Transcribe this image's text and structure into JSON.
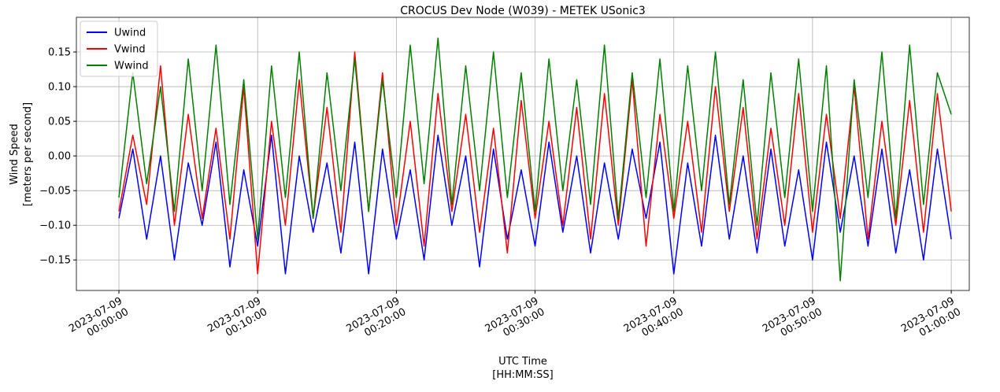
{
  "chart_data": {
    "type": "line",
    "title": "CROCUS Dev Node (W039) - METEK USonic3",
    "xlabel": [
      "UTC Time",
      "[HH:MM:SS]"
    ],
    "ylabel": [
      "Wind Speed",
      "[meters per second]"
    ],
    "x": [
      "2023-07-09 00:00:00",
      "2023-07-09 00:01:00",
      "2023-07-09 00:02:00",
      "2023-07-09 00:03:00",
      "2023-07-09 00:04:00",
      "2023-07-09 00:05:00",
      "2023-07-09 00:06:00",
      "2023-07-09 00:07:00",
      "2023-07-09 00:08:00",
      "2023-07-09 00:09:00",
      "2023-07-09 00:10:00",
      "2023-07-09 00:11:00",
      "2023-07-09 00:12:00",
      "2023-07-09 00:13:00",
      "2023-07-09 00:14:00",
      "2023-07-09 00:15:00",
      "2023-07-09 00:16:00",
      "2023-07-09 00:17:00",
      "2023-07-09 00:18:00",
      "2023-07-09 00:19:00",
      "2023-07-09 00:20:00",
      "2023-07-09 00:21:00",
      "2023-07-09 00:22:00",
      "2023-07-09 00:23:00",
      "2023-07-09 00:24:00",
      "2023-07-09 00:25:00",
      "2023-07-09 00:26:00",
      "2023-07-09 00:27:00",
      "2023-07-09 00:28:00",
      "2023-07-09 00:29:00",
      "2023-07-09 00:30:00",
      "2023-07-09 00:31:00",
      "2023-07-09 00:32:00",
      "2023-07-09 00:33:00",
      "2023-07-09 00:34:00",
      "2023-07-09 00:35:00",
      "2023-07-09 00:36:00",
      "2023-07-09 00:37:00",
      "2023-07-09 00:38:00",
      "2023-07-09 00:39:00",
      "2023-07-09 00:40:00",
      "2023-07-09 00:41:00",
      "2023-07-09 00:42:00",
      "2023-07-09 00:43:00",
      "2023-07-09 00:44:00",
      "2023-07-09 00:45:00",
      "2023-07-09 00:46:00",
      "2023-07-09 00:47:00",
      "2023-07-09 00:48:00",
      "2023-07-09 00:49:00",
      "2023-07-09 00:50:00",
      "2023-07-09 00:51:00",
      "2023-07-09 00:52:00",
      "2023-07-09 00:53:00",
      "2023-07-09 00:54:00",
      "2023-07-09 00:55:00",
      "2023-07-09 00:56:00",
      "2023-07-09 00:57:00",
      "2023-07-09 00:58:00",
      "2023-07-09 00:59:00",
      "2023-07-09 01:00:00"
    ],
    "series": [
      {
        "name": "Uwind",
        "color": "#0000ff",
        "values": [
          -0.09,
          0.01,
          -0.12,
          0.0,
          -0.15,
          -0.01,
          -0.1,
          0.02,
          -0.16,
          -0.02,
          -0.13,
          0.03,
          -0.17,
          0.0,
          -0.11,
          -0.01,
          -0.14,
          0.02,
          -0.17,
          0.01,
          -0.12,
          -0.02,
          -0.15,
          0.03,
          -0.1,
          0.0,
          -0.16,
          0.01,
          -0.12,
          -0.02,
          -0.13,
          0.02,
          -0.11,
          0.0,
          -0.14,
          -0.01,
          -0.12,
          0.01,
          -0.09,
          0.02,
          -0.17,
          -0.01,
          -0.13,
          0.03,
          -0.12,
          0.0,
          -0.14,
          0.01,
          -0.13,
          -0.02,
          -0.15,
          0.02,
          -0.11,
          0.0,
          -0.13,
          0.01,
          -0.14,
          -0.02,
          -0.15,
          0.01,
          -0.12
        ]
      },
      {
        "name": "Vwind",
        "color": "#ff0000",
        "values": [
          -0.08,
          0.03,
          -0.07,
          0.13,
          -0.1,
          0.06,
          -0.09,
          0.04,
          -0.12,
          0.1,
          -0.17,
          0.05,
          -0.1,
          0.11,
          -0.09,
          0.07,
          -0.11,
          0.15,
          -0.08,
          0.12,
          -0.1,
          0.05,
          -0.13,
          0.09,
          -0.08,
          0.06,
          -0.11,
          0.04,
          -0.14,
          0.08,
          -0.09,
          0.05,
          -0.1,
          0.07,
          -0.12,
          0.09,
          -0.1,
          0.11,
          -0.13,
          0.06,
          -0.09,
          0.05,
          -0.11,
          0.1,
          -0.08,
          0.07,
          -0.12,
          0.04,
          -0.1,
          0.09,
          -0.11,
          0.06,
          -0.09,
          0.1,
          -0.12,
          0.05,
          -0.1,
          0.08,
          -0.11,
          0.09,
          -0.08
        ]
      },
      {
        "name": "Wwind",
        "color": "#008000",
        "values": [
          -0.06,
          0.12,
          -0.04,
          0.1,
          -0.08,
          0.14,
          -0.05,
          0.16,
          -0.07,
          0.11,
          -0.12,
          0.13,
          -0.06,
          0.15,
          -0.09,
          0.12,
          -0.05,
          0.14,
          -0.08,
          0.11,
          -0.06,
          0.16,
          -0.04,
          0.17,
          -0.07,
          0.13,
          -0.05,
          0.15,
          -0.06,
          0.12,
          -0.08,
          0.14,
          -0.05,
          0.11,
          -0.07,
          0.16,
          -0.09,
          0.12,
          -0.06,
          0.14,
          -0.08,
          0.13,
          -0.05,
          0.15,
          -0.07,
          0.11,
          -0.1,
          0.12,
          -0.06,
          0.14,
          -0.08,
          0.13,
          -0.18,
          0.11,
          -0.06,
          0.15,
          -0.09,
          0.16,
          -0.07,
          0.12,
          0.06
        ]
      }
    ],
    "xlim": [
      "2023-07-08 23:56:56",
      "2023-07-09 01:01:18"
    ],
    "xticks": [
      {
        "value": "2023-07-09 00:00:00",
        "label": [
          "2023-07-09",
          "00:00:00"
        ]
      },
      {
        "value": "2023-07-09 00:10:00",
        "label": [
          "2023-07-09",
          "00:10:00"
        ]
      },
      {
        "value": "2023-07-09 00:20:00",
        "label": [
          "2023-07-09",
          "00:20:00"
        ]
      },
      {
        "value": "2023-07-09 00:30:00",
        "label": [
          "2023-07-09",
          "00:30:00"
        ]
      },
      {
        "value": "2023-07-09 00:40:00",
        "label": [
          "2023-07-09",
          "00:40:00"
        ]
      },
      {
        "value": "2023-07-09 00:50:00",
        "label": [
          "2023-07-09",
          "00:50:00"
        ]
      },
      {
        "value": "2023-07-09 01:00:00",
        "label": [
          "2023-07-09",
          "01:00:00"
        ]
      }
    ],
    "ylim": [
      -0.194,
      0.2
    ],
    "yticks": [
      {
        "value": -0.15,
        "label": "−0.15"
      },
      {
        "value": -0.1,
        "label": "−0.10"
      },
      {
        "value": -0.05,
        "label": "−0.05"
      },
      {
        "value": 0,
        "label": "0.00"
      },
      {
        "value": 0.05,
        "label": "0.05"
      },
      {
        "value": 0.1,
        "label": "0.10"
      },
      {
        "value": 0.15,
        "label": "0.15"
      }
    ],
    "grid": true,
    "legend": "upper-left"
  }
}
